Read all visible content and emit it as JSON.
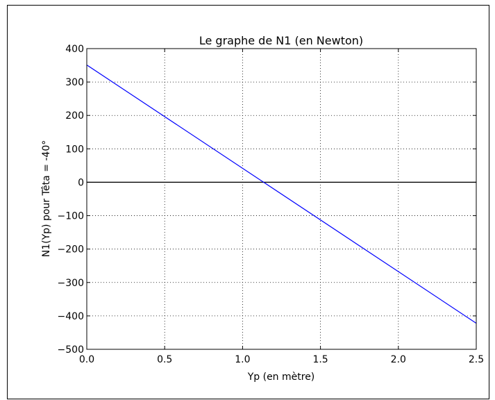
{
  "chart_data": {
    "type": "line",
    "title": "Le graphe de N1 (en Newton)",
    "xlabel": "Yp (en mètre)",
    "ylabel": "N1(Yp) pour Têta = -40°",
    "xlim": [
      0.0,
      2.5
    ],
    "ylim": [
      -500,
      400
    ],
    "x_ticks": [
      0.0,
      0.5,
      1.0,
      1.5,
      2.0,
      2.5
    ],
    "x_tick_labels": [
      "0.0",
      "0.5",
      "1.0",
      "1.5",
      "2.0",
      "2.5"
    ],
    "y_ticks": [
      400,
      300,
      200,
      100,
      0,
      -100,
      -200,
      -300,
      -400,
      -500
    ],
    "y_tick_labels": [
      "400",
      "300",
      "200",
      "100",
      "0",
      "−100",
      "−200",
      "−300",
      "−400",
      "−500"
    ],
    "grid": true,
    "series": [
      {
        "color": "#0000ff",
        "x": [
          0.0,
          2.5
        ],
        "y": [
          351,
          -422
        ]
      }
    ],
    "reference_lines": [
      {
        "orientation": "horizontal",
        "y": 0,
        "color": "#000000"
      }
    ]
  }
}
